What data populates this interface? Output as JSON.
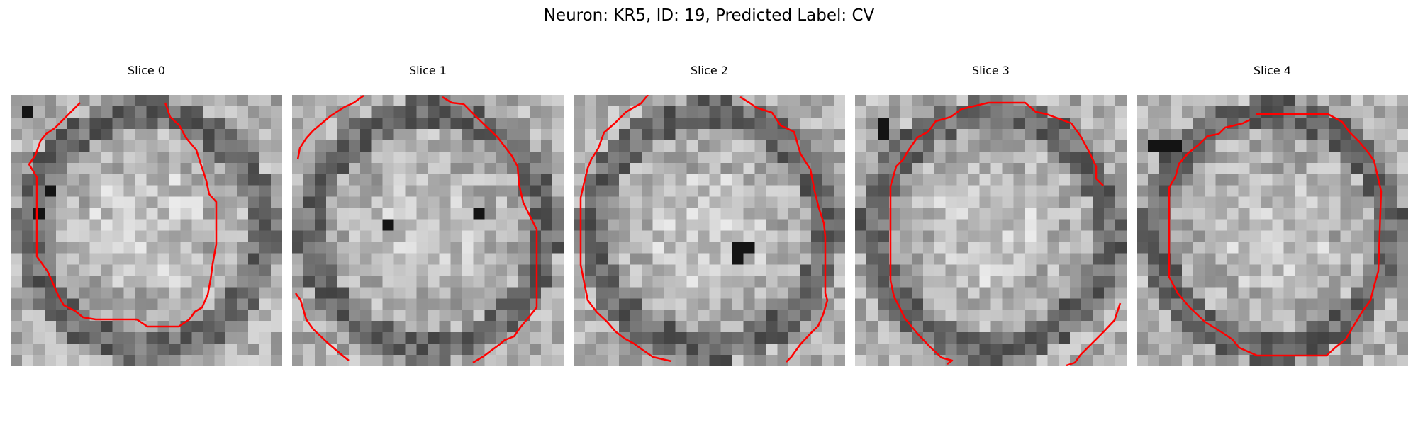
{
  "figure": {
    "title": "Neuron: KR5, ID: 19, Predicted Label: CV"
  },
  "panels": [
    {
      "title": "Slice 0",
      "seed": 11,
      "dark_cells": [
        [
          1,
          1
        ],
        [
          2,
          10
        ],
        [
          3,
          8
        ]
      ],
      "overlay": "contour",
      "contour_color": "#ff0000"
    },
    {
      "title": "Slice 1",
      "seed": 23,
      "dark_cells": [
        [
          16,
          10
        ],
        [
          8,
          11
        ]
      ],
      "overlay": "contour",
      "contour_color": "#ff0000"
    },
    {
      "title": "Slice 2",
      "seed": 37,
      "dark_cells": [
        [
          14,
          13
        ],
        [
          15,
          13
        ],
        [
          14,
          14
        ]
      ],
      "overlay": "contour",
      "contour_color": "#ff0000"
    },
    {
      "title": "Slice 3",
      "seed": 41,
      "dark_cells": [
        [
          2,
          2
        ],
        [
          2,
          3
        ]
      ],
      "overlay": "contour",
      "contour_color": "#ff0000"
    },
    {
      "title": "Slice 4",
      "seed": 59,
      "dark_cells": [
        [
          1,
          4
        ],
        [
          2,
          4
        ],
        [
          3,
          4
        ]
      ],
      "overlay": "contour",
      "contour_color": "#ff0000"
    }
  ]
}
